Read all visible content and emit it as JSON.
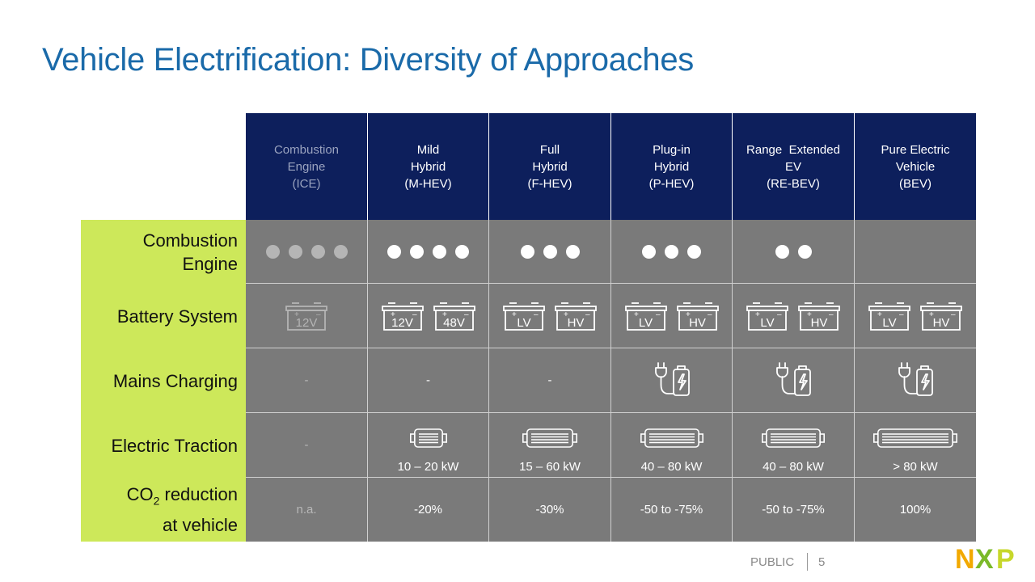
{
  "title": "Vehicle Electrification: Diversity of Approaches",
  "columns": [
    {
      "l1": "Combustion",
      "l2": "Engine",
      "l3": "(ICE)"
    },
    {
      "l1": "Mild",
      "l2": "Hybrid",
      "l3": "(M-HEV)"
    },
    {
      "l1": "Full",
      "l2": "Hybrid",
      "l3": "(F-HEV)"
    },
    {
      "l1": "Plug-in",
      "l2": "Hybrid",
      "l3": "(P-HEV)"
    },
    {
      "l1": "Range  Extended",
      "l2": "EV",
      "l3": "(RE-BEV)"
    },
    {
      "l1": "Pure Electric",
      "l2": "Vehicle",
      "l3": "(BEV)"
    }
  ],
  "rows": {
    "combustion": {
      "l1": "Combustion",
      "l2": "Engine",
      "dots": [
        4,
        4,
        3,
        3,
        2,
        0
      ]
    },
    "battery": {
      "label": "Battery System",
      "cells": [
        [
          "12V"
        ],
        [
          "12V",
          "48V"
        ],
        [
          "LV",
          "HV"
        ],
        [
          "LV",
          "HV"
        ],
        [
          "LV",
          "HV"
        ],
        [
          "LV",
          "HV"
        ]
      ]
    },
    "mains": {
      "label": "Mains Charging",
      "values": [
        "-",
        "-",
        "-"
      ]
    },
    "traction": {
      "label": "Electric Traction",
      "none": "-",
      "kw": [
        "10 – 20 kW",
        "15 – 60 kW",
        "40 – 80 kW",
        "40 – 80 kW",
        "> 80 kW"
      ]
    },
    "co2": {
      "l1a": "CO",
      "l1sub": "2",
      "l1b": " reduction",
      "l2": "at vehicle",
      "values": [
        "n.a.",
        "-20%",
        "-30%",
        "-50 to -75%",
        "-50 to -75%",
        "100%"
      ]
    }
  },
  "footer": {
    "classification": "PUBLIC",
    "page": "5"
  },
  "colors": {
    "title": "#1a6aa9",
    "header_bg": "#0d1f5c",
    "cell_bg": "#7a7a7a",
    "label_bg": "#cde85a"
  },
  "logo_text": "NXP"
}
